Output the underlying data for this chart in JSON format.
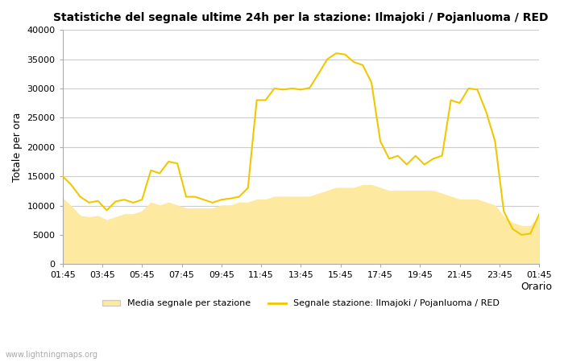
{
  "title": "Statistiche del segnale ultime 24h per la stazione: Ilmajoki / Pojanluoma / RED",
  "xlabel": "Orario",
  "ylabel": "Totale per ora",
  "background_color": "#ffffff",
  "plot_bg_color": "#ffffff",
  "grid_color": "#cccccc",
  "ylim": [
    0,
    40000
  ],
  "yticks": [
    0,
    5000,
    10000,
    15000,
    20000,
    25000,
    30000,
    35000,
    40000
  ],
  "xtick_labels": [
    "01:45",
    "03:45",
    "05:45",
    "07:45",
    "09:45",
    "11:45",
    "13:45",
    "15:45",
    "17:45",
    "19:45",
    "21:45",
    "23:45",
    "01:45"
  ],
  "line_color": "#f0c800",
  "fill_color": "#fde9a0",
  "line_label": "Segnale stazione: Ilmajoki / Pojanluoma / RED",
  "fill_label": "Media segnale per stazione",
  "watermark": "www.lightningmaps.org",
  "line_y": [
    15000,
    13500,
    11500,
    10500,
    10800,
    9200,
    10700,
    11000,
    10500,
    11000,
    16000,
    15500,
    17500,
    17200,
    11500,
    11500,
    11000,
    10500,
    11000,
    11200,
    11500,
    13000,
    28000,
    28000,
    30000,
    29800,
    30000,
    29800,
    30100,
    32500,
    35000,
    36000,
    35800,
    34500,
    34000,
    31000,
    21000,
    18000,
    18500,
    17000,
    18500,
    17000,
    18000,
    18500,
    28000,
    27500,
    30000,
    29800,
    26000,
    21000,
    9000,
    6000,
    5000,
    5200,
    8500
  ],
  "fill_y": [
    11200,
    9800,
    8200,
    8000,
    8200,
    7500,
    8000,
    8500,
    8500,
    9000,
    10500,
    10000,
    10500,
    10000,
    9500,
    9500,
    9500,
    9500,
    10000,
    10000,
    10500,
    10500,
    11000,
    11000,
    11500,
    11500,
    11500,
    11500,
    11500,
    12000,
    12500,
    13000,
    13000,
    13000,
    13500,
    13500,
    13000,
    12500,
    12500,
    12500,
    12500,
    12500,
    12500,
    12000,
    11500,
    11000,
    11000,
    11000,
    10500,
    10000,
    8000,
    7000,
    6500,
    6500,
    8000
  ]
}
